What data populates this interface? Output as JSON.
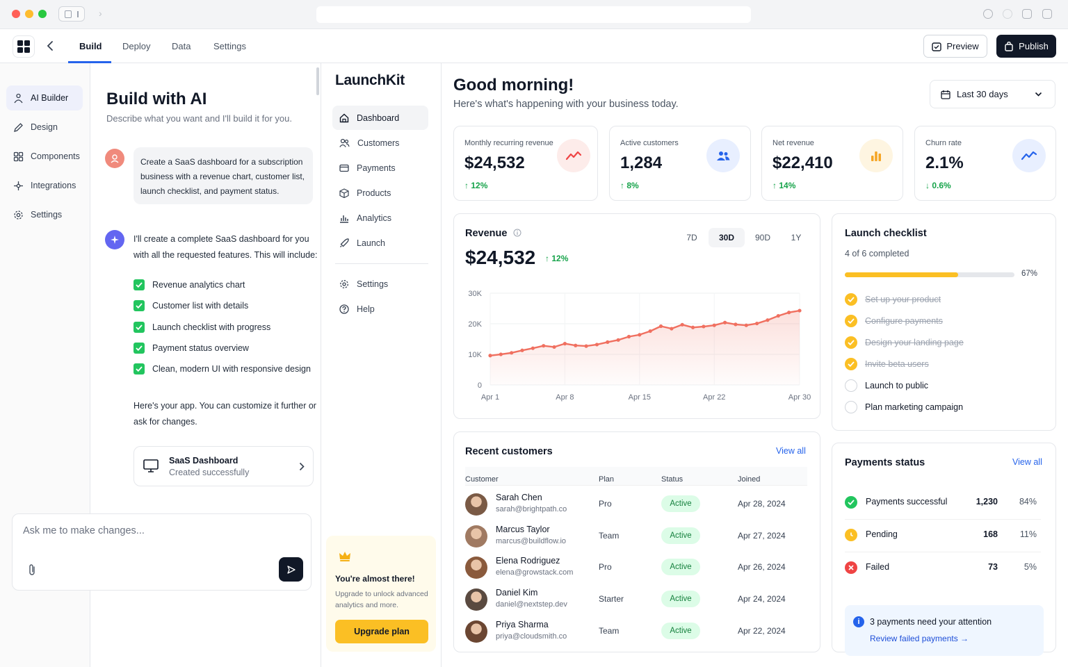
{
  "window": {
    "traffic_colors": [
      "#ff5f57",
      "#febc2e",
      "#28c840"
    ]
  },
  "topbar": {
    "tabs": [
      "Build",
      "Deploy",
      "Data",
      "Settings"
    ],
    "active_tab": "Build",
    "preview_label": "Preview",
    "publish_label": "Publish"
  },
  "leftnav": {
    "items": [
      {
        "label": "AI Builder",
        "icon": "ai-builder-icon"
      },
      {
        "label": "Design",
        "icon": "pen-icon"
      },
      {
        "label": "Components",
        "icon": "components-icon"
      },
      {
        "label": "Integrations",
        "icon": "integrations-icon"
      },
      {
        "label": "Settings",
        "icon": "gear-icon"
      }
    ],
    "active": "AI Builder"
  },
  "chat": {
    "title": "Build with AI",
    "subtitle": "Describe what you want and I'll build it for you.",
    "user_message": "Create a SaaS dashboard for a subscription business with a revenue chart, customer list, launch checklist, and payment status.",
    "ai_intro": "I'll create a complete SaaS dashboard for you with all the requested features. This will include:",
    "features": [
      "Revenue analytics chart",
      "Customer list with details",
      "Launch checklist with progress",
      "Payment status overview",
      "Clean, modern UI with responsive design"
    ],
    "ai_outro": "Here's your app. You can customize it further or ask for changes.",
    "artifact": {
      "title": "SaaS Dashboard",
      "status": "Created successfully"
    },
    "input_placeholder": "Ask me to make changes..."
  },
  "appnav": {
    "brand": "LaunchKit",
    "items": [
      {
        "label": "Dashboard",
        "icon": "home-icon"
      },
      {
        "label": "Customers",
        "icon": "users-icon"
      },
      {
        "label": "Payments",
        "icon": "card-icon"
      },
      {
        "label": "Products",
        "icon": "box-icon"
      },
      {
        "label": "Analytics",
        "icon": "bar-chart-icon"
      },
      {
        "label": "Launch",
        "icon": "rocket-icon"
      }
    ],
    "secondary": [
      {
        "label": "Settings",
        "icon": "gear-icon"
      },
      {
        "label": "Help",
        "icon": "help-icon"
      }
    ],
    "active": "Dashboard",
    "upgrade": {
      "title": "You're almost there!",
      "text": "Upgrade to unlock advanced analytics and more.",
      "button": "Upgrade plan"
    }
  },
  "dashboard": {
    "greeting": "Good morning!",
    "subtitle": "Here's what's happening with your business today.",
    "date_range": "Last 30 days",
    "kpis": [
      {
        "label": "Monthly recurring revenue",
        "value": "$24,532",
        "change": "12%",
        "direction": "up",
        "icon": "trend-up-icon",
        "color": "#ef4444",
        "bg": "#fdecea"
      },
      {
        "label": "Active customers",
        "value": "1,284",
        "change": "8%",
        "direction": "up",
        "icon": "users-icon",
        "color": "#2563eb",
        "bg": "#e8efff"
      },
      {
        "label": "Net revenue",
        "value": "$22,410",
        "change": "14%",
        "direction": "up",
        "icon": "bar-chart-icon",
        "color": "#f5a524",
        "bg": "#fef5e1"
      },
      {
        "label": "Churn rate",
        "value": "2.1%",
        "change": "0.6%",
        "direction": "down",
        "icon": "trend-line-icon",
        "color": "#2563eb",
        "bg": "#e8efff"
      }
    ],
    "revenue": {
      "title": "Revenue",
      "value": "$24,532",
      "change": "12%",
      "ranges": [
        "7D",
        "30D",
        "90D",
        "1Y"
      ],
      "active_range": "30D"
    },
    "checklist": {
      "title": "Launch checklist",
      "subtitle": "4 of 6 completed",
      "progress": 0.67,
      "progress_label": "67%",
      "items": [
        {
          "label": "Set up your product",
          "done": true
        },
        {
          "label": "Configure payments",
          "done": true
        },
        {
          "label": "Design your landing page",
          "done": true
        },
        {
          "label": "Invite beta users",
          "done": true
        },
        {
          "label": "Launch to public",
          "done": false
        },
        {
          "label": "Plan marketing campaign",
          "done": false
        }
      ]
    },
    "customers": {
      "title": "Recent customers",
      "view_all": "View all",
      "columns": [
        "Customer",
        "Plan",
        "Status",
        "Joined"
      ],
      "rows": [
        {
          "name": "Sarah Chen",
          "email": "sarah@brightpath.co",
          "plan": "Pro",
          "status": "Active",
          "joined": "Apr 28, 2024",
          "avatar_color": "#7a5a45"
        },
        {
          "name": "Marcus Taylor",
          "email": "marcus@buildflow.io",
          "plan": "Team",
          "status": "Active",
          "joined": "Apr 27, 2024",
          "avatar_color": "#a07a62"
        },
        {
          "name": "Elena Rodriguez",
          "email": "elena@growstack.com",
          "plan": "Pro",
          "status": "Active",
          "joined": "Apr 26, 2024",
          "avatar_color": "#8a5a3c"
        },
        {
          "name": "Daniel Kim",
          "email": "daniel@nextstep.dev",
          "plan": "Starter",
          "status": "Active",
          "joined": "Apr 24, 2024",
          "avatar_color": "#5a4a40"
        },
        {
          "name": "Priya Sharma",
          "email": "priya@cloudsmith.co",
          "plan": "Team",
          "status": "Active",
          "joined": "Apr 22, 2024",
          "avatar_color": "#6b4632"
        }
      ]
    },
    "payments": {
      "title": "Payments status",
      "view_all": "View all",
      "rows": [
        {
          "label": "Payments successful",
          "count": "1,230",
          "pct": "84%",
          "icon": "check-circle-icon",
          "color": "#22c55e"
        },
        {
          "label": "Pending",
          "count": "168",
          "pct": "11%",
          "icon": "clock-icon",
          "color": "#fbbf24"
        },
        {
          "label": "Failed",
          "count": "73",
          "pct": "5%",
          "icon": "x-circle-icon",
          "color": "#ef4444"
        }
      ],
      "attention": "3 payments need your attention",
      "attention_link": "Review failed payments →"
    }
  },
  "chart_data": {
    "type": "area",
    "title": "Revenue",
    "x": [
      "Apr 1",
      "Apr 2",
      "Apr 3",
      "Apr 4",
      "Apr 5",
      "Apr 6",
      "Apr 7",
      "Apr 8",
      "Apr 9",
      "Apr 10",
      "Apr 11",
      "Apr 12",
      "Apr 13",
      "Apr 14",
      "Apr 15",
      "Apr 16",
      "Apr 17",
      "Apr 18",
      "Apr 19",
      "Apr 20",
      "Apr 21",
      "Apr 22",
      "Apr 23",
      "Apr 24",
      "Apr 25",
      "Apr 26",
      "Apr 27",
      "Apr 28",
      "Apr 29",
      "Apr 30"
    ],
    "x_ticks": [
      "Apr 1",
      "Apr 8",
      "Apr 15",
      "Apr 22",
      "Apr 30"
    ],
    "values": [
      9600,
      10000,
      10500,
      11300,
      12000,
      12800,
      12400,
      13500,
      12900,
      12700,
      13200,
      14000,
      14700,
      15800,
      16400,
      17600,
      19200,
      18400,
      19700,
      18800,
      19100,
      19500,
      20400,
      19800,
      19500,
      20100,
      21200,
      22600,
      23700,
      24300
    ],
    "y_ticks": [
      0,
      10000,
      20000,
      30000
    ],
    "y_tick_labels": [
      "0",
      "10K",
      "20K",
      "30K"
    ],
    "ylim": [
      0,
      30000
    ],
    "grid": true,
    "line_color": "#f07060"
  }
}
